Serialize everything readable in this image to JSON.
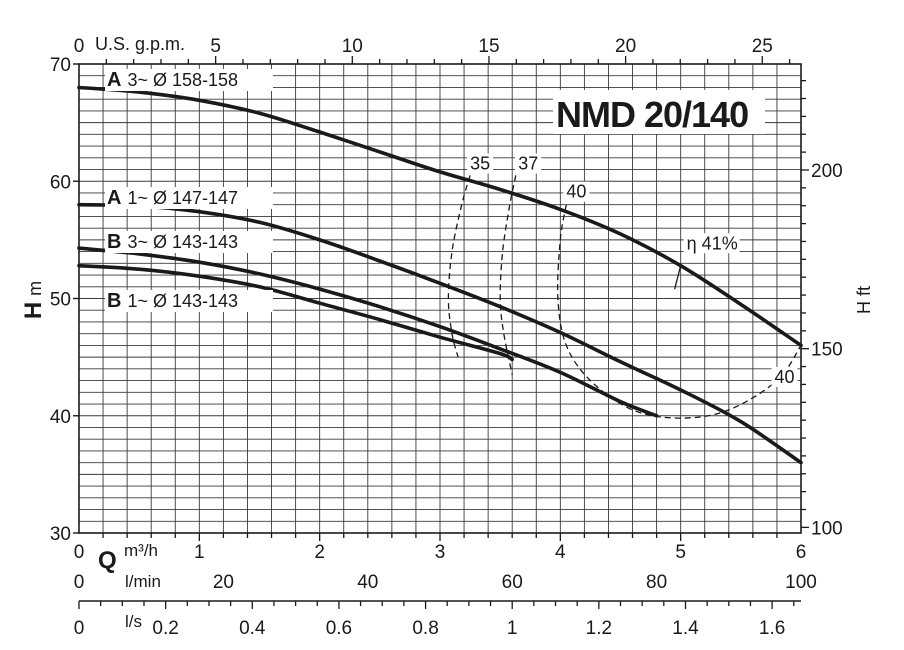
{
  "chart_data": {
    "type": "line",
    "title": "NMD 20/140",
    "xlabel": "Q",
    "ylabel": "H",
    "ylabel_unit": "m",
    "right_ylabel": "H ft",
    "xlim": [
      0,
      6
    ],
    "ylim": [
      30,
      70
    ],
    "grid": true,
    "top_axis": {
      "label": "U.S. g.p.m.",
      "ticks": [
        {
          "value": 0,
          "label": "0"
        },
        {
          "value": 5,
          "label": "5"
        },
        {
          "value": 10,
          "label": "10"
        },
        {
          "value": 15,
          "label": "15"
        },
        {
          "value": 20,
          "label": "20"
        },
        {
          "value": 25,
          "label": "25"
        }
      ]
    },
    "left_axis": {
      "ticks": [
        {
          "value": 30,
          "label": "30"
        },
        {
          "value": 40,
          "label": "40"
        },
        {
          "value": 50,
          "label": "50"
        },
        {
          "value": 60,
          "label": "60"
        },
        {
          "value": 70,
          "label": "70"
        }
      ]
    },
    "right_axis": {
      "ticks": [
        {
          "value": 100,
          "label": "100"
        },
        {
          "value": 150,
          "label": "150"
        },
        {
          "value": 200,
          "label": "200"
        }
      ]
    },
    "bottom_axes": [
      {
        "unit": "m³/h",
        "ticks": [
          {
            "value": 0,
            "label": "0"
          },
          {
            "value": 1,
            "label": "1"
          },
          {
            "value": 2,
            "label": "2"
          },
          {
            "value": 3,
            "label": "3"
          },
          {
            "value": 4,
            "label": "4"
          },
          {
            "value": 5,
            "label": "5"
          },
          {
            "value": 6,
            "label": "6"
          }
        ]
      },
      {
        "unit": "l/min",
        "ticks": [
          {
            "value": 0,
            "label": "0"
          },
          {
            "value": 20,
            "label": "20"
          },
          {
            "value": 40,
            "label": "40"
          },
          {
            "value": 60,
            "label": "60"
          },
          {
            "value": 80,
            "label": "80"
          },
          {
            "value": 100,
            "label": "100"
          }
        ]
      },
      {
        "unit": "l/s",
        "ticks": [
          {
            "value": 0,
            "label": "0"
          },
          {
            "value": 0.2,
            "label": "0.2"
          },
          {
            "value": 0.4,
            "label": "0.4"
          },
          {
            "value": 0.6,
            "label": "0.6"
          },
          {
            "value": 0.8,
            "label": "0.8"
          },
          {
            "value": 1,
            "label": "1"
          },
          {
            "value": 1.2,
            "label": "1.2"
          },
          {
            "value": 1.4,
            "label": "1.4"
          },
          {
            "value": 1.6,
            "label": "1.6"
          }
        ]
      }
    ],
    "series": [
      {
        "name": "A 3~ Ø 158-158",
        "tag": "A",
        "label_rest": "3~ Ø 158-158",
        "x": [
          0,
          0.5,
          1,
          1.5,
          2,
          2.5,
          3,
          3.5,
          4,
          4.5,
          5,
          5.5,
          6
        ],
        "y": [
          68,
          67.6,
          66.9,
          65.8,
          64.2,
          62.5,
          60.8,
          59.3,
          57.6,
          55.5,
          52.8,
          49.5,
          46
        ]
      },
      {
        "name": "A 1~ Ø 147-147",
        "tag": "A",
        "label_rest": "1~ Ø 147-147",
        "x": [
          0,
          0.5,
          1,
          1.5,
          2,
          2.5,
          3,
          3.5,
          4,
          4.5,
          5,
          5.5,
          6
        ],
        "y": [
          58,
          57.9,
          57.4,
          56.5,
          55,
          53.2,
          51.3,
          49.3,
          47.1,
          44.6,
          42.2,
          39.5,
          36
        ]
      },
      {
        "name": "B 3~ Ø 143-143",
        "tag": "B",
        "label_rest": "3~ Ø 143-143",
        "x": [
          0,
          0.5,
          1,
          1.5,
          2,
          2.5,
          3,
          3.5,
          4,
          4.5,
          4.8
        ],
        "y": [
          54.3,
          53.8,
          53.1,
          52.1,
          50.8,
          49.3,
          47.6,
          45.7,
          43.7,
          41.2,
          40
        ]
      },
      {
        "name": "B 1~ Ø 143-143",
        "tag": "B",
        "label_rest": "1~ Ø 143-143",
        "x": [
          0,
          0.5,
          1,
          1.5,
          2,
          2.5,
          3,
          3.5,
          3.6
        ],
        "y": [
          52.8,
          52.5,
          51.9,
          51,
          49.6,
          48.2,
          46.7,
          45.3,
          44.8
        ]
      }
    ],
    "efficiency_curves": [
      {
        "label": "35",
        "x": [
          3.25,
          3.18,
          3.1,
          3.07,
          3.1,
          3.15
        ],
        "y": [
          60.5,
          58,
          54,
          50,
          47,
          45
        ]
      },
      {
        "label": "37",
        "x": [
          3.63,
          3.58,
          3.52,
          3.5,
          3.53,
          3.6
        ],
        "y": [
          60.5,
          58,
          54,
          50,
          47,
          43.5
        ]
      },
      {
        "label": "40",
        "x": [
          4.05,
          4.0,
          3.98,
          4.05,
          4.25,
          4.6,
          5.0,
          5.4,
          5.8,
          6.0
        ],
        "y": [
          58,
          55,
          50,
          46,
          43,
          40.5,
          39.8,
          40.5,
          43,
          46
        ]
      }
    ],
    "annotations": [
      {
        "text": "35",
        "x": 3.25,
        "y": 61
      },
      {
        "text": "37",
        "x": 3.65,
        "y": 61
      },
      {
        "text": "40",
        "x": 4.05,
        "y": 58.6
      },
      {
        "text": "η 41%",
        "x": 5.05,
        "y": 54.2
      },
      {
        "text": "40",
        "x": 5.78,
        "y": 42.8
      }
    ],
    "peak_marker": {
      "x": [
        5.0,
        4.95
      ],
      "y": [
        52.8,
        50.8
      ]
    },
    "label_text_top_axis_pos": "top-left",
    "line_color": "#1a1a1a",
    "grid_color": "#3a3a3a"
  }
}
